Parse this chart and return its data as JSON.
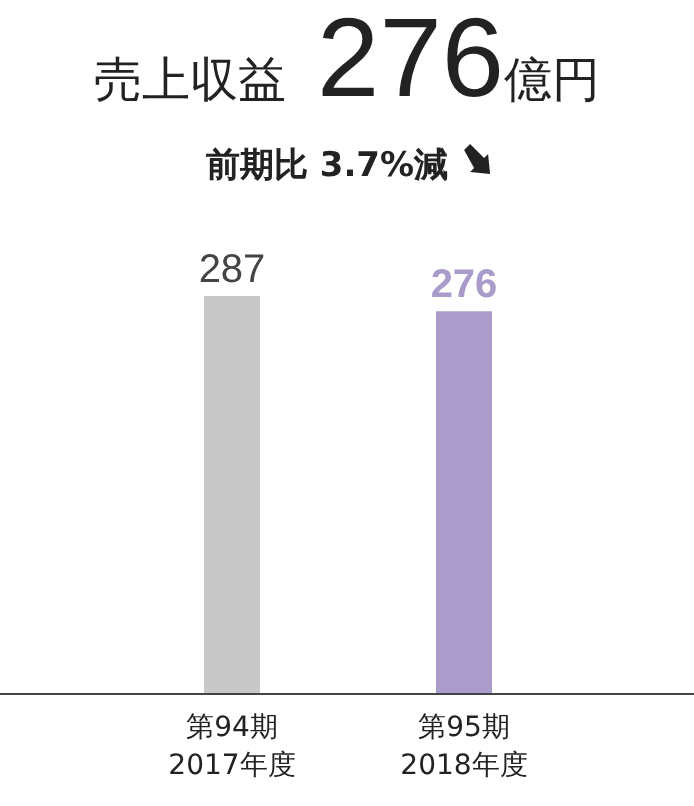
{
  "chart_data": {
    "type": "bar",
    "title": "売上収益 276億円",
    "subtitle": "前期比 3.7%減",
    "categories": [
      "第94期\n2017年度",
      "第95期\n2018年度"
    ],
    "values": [
      287,
      276
    ],
    "colors": [
      "#c8c8c8",
      "#a99ccb"
    ],
    "data_labels": true
  }
}
